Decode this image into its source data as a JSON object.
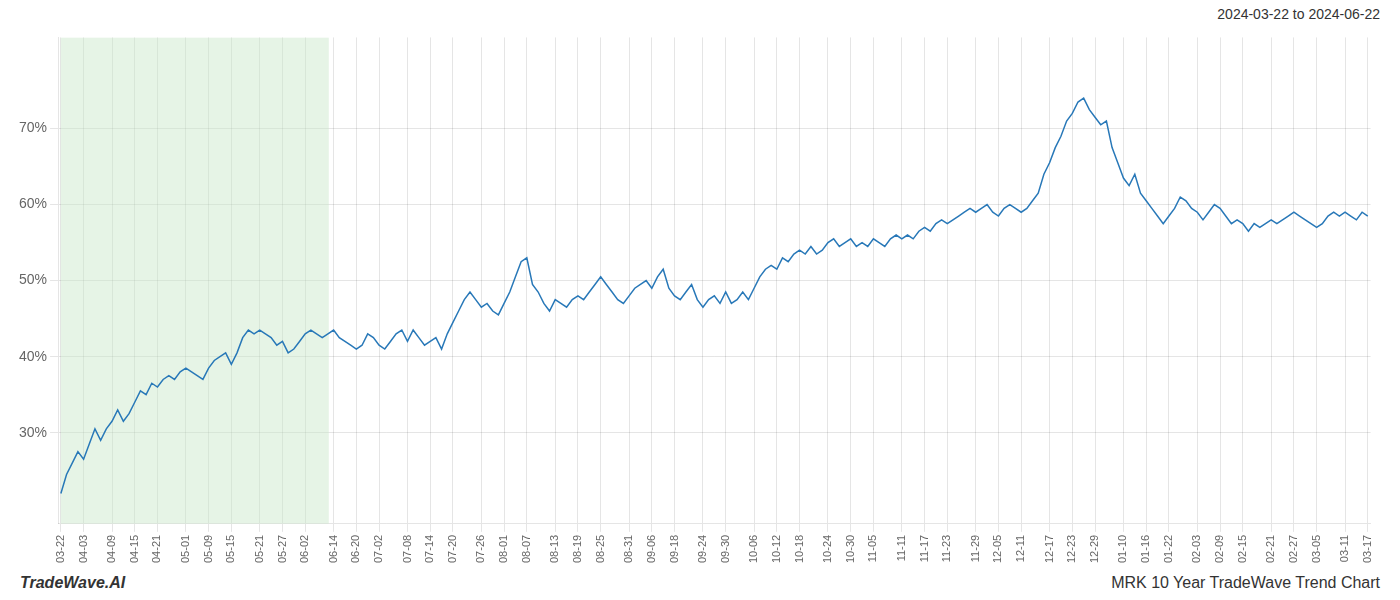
{
  "chart_data": {
    "type": "line",
    "annotations": [
      "2024-03-22 to 2024-06-22",
      "TradeWave.AI",
      "MRK 10 Year TradeWave Trend Chart"
    ],
    "categories": [
      "03-22",
      null,
      null,
      null,
      "04-03",
      null,
      null,
      null,
      null,
      "04-09",
      null,
      null,
      null,
      "04-15",
      null,
      null,
      null,
      "04-21",
      null,
      null,
      null,
      null,
      "05-01",
      null,
      null,
      null,
      "05-09",
      null,
      null,
      null,
      "05-15",
      null,
      null,
      null,
      null,
      "05-21",
      null,
      null,
      null,
      "05-27",
      null,
      null,
      null,
      "06-02",
      null,
      null,
      null,
      null,
      "06-14",
      null,
      null,
      null,
      "06-20",
      null,
      null,
      null,
      "07-02",
      null,
      null,
      null,
      null,
      "07-08",
      null,
      null,
      null,
      "07-14",
      null,
      null,
      null,
      "07-20",
      null,
      null,
      null,
      null,
      "07-26",
      null,
      null,
      null,
      "08-01",
      null,
      null,
      null,
      "08-07",
      null,
      null,
      null,
      null,
      "08-13",
      null,
      null,
      null,
      "08-19",
      null,
      null,
      null,
      "08-25",
      null,
      null,
      null,
      null,
      "08-31",
      null,
      null,
      null,
      "09-06",
      null,
      null,
      null,
      "09-18",
      null,
      null,
      null,
      null,
      "09-24",
      null,
      null,
      null,
      "09-30",
      null,
      null,
      null,
      null,
      "10-06",
      null,
      null,
      null,
      "10-12",
      null,
      null,
      null,
      "10-18",
      null,
      null,
      null,
      null,
      "10-24",
      null,
      null,
      null,
      "10-30",
      null,
      null,
      null,
      "11-05",
      null,
      null,
      null,
      null,
      "11-11",
      null,
      null,
      null,
      "11-17",
      null,
      null,
      null,
      "11-23",
      null,
      null,
      null,
      null,
      "11-29",
      null,
      null,
      null,
      "12-05",
      null,
      null,
      null,
      "12-11",
      null,
      null,
      null,
      null,
      "12-17",
      null,
      null,
      null,
      "12-23",
      null,
      null,
      null,
      "12-29",
      null,
      null,
      null,
      null,
      "01-10",
      null,
      null,
      null,
      "01-16",
      null,
      null,
      null,
      "01-22",
      null,
      null,
      null,
      null,
      "02-03",
      null,
      null,
      null,
      "02-09",
      null,
      null,
      null,
      "02-15",
      null,
      null,
      null,
      null,
      "02-21",
      null,
      null,
      null,
      "02-27",
      null,
      null,
      null,
      "03-05",
      null,
      null,
      null,
      null,
      "03-11",
      null,
      null,
      null,
      "03-17"
    ],
    "values": [
      22.0,
      24.5,
      26.0,
      27.5,
      26.5,
      28.5,
      30.5,
      29.0,
      30.5,
      31.5,
      33.0,
      31.5,
      32.5,
      34.0,
      35.5,
      35.0,
      36.5,
      36.0,
      37.0,
      37.5,
      37.0,
      38.0,
      38.5,
      38.0,
      37.5,
      37.0,
      38.5,
      39.5,
      40.0,
      40.5,
      39.0,
      40.5,
      42.5,
      43.5,
      43.0,
      43.5,
      43.0,
      42.5,
      41.5,
      42.0,
      40.5,
      41.0,
      42.0,
      43.0,
      43.5,
      43.0,
      42.5,
      43.0,
      43.5,
      42.5,
      42.0,
      41.5,
      41.0,
      41.5,
      43.0,
      42.5,
      41.5,
      41.0,
      42.0,
      43.0,
      43.5,
      42.0,
      43.5,
      42.5,
      41.5,
      42.0,
      42.5,
      41.0,
      43.0,
      44.5,
      46.0,
      47.5,
      48.5,
      47.5,
      46.5,
      47.0,
      46.0,
      45.5,
      47.0,
      48.5,
      50.5,
      52.5,
      53.0,
      49.5,
      48.5,
      47.0,
      46.0,
      47.5,
      47.0,
      46.5,
      47.5,
      48.0,
      47.5,
      48.5,
      49.5,
      50.5,
      49.5,
      48.5,
      47.5,
      47.0,
      48.0,
      49.0,
      49.5,
      50.0,
      49.0,
      50.5,
      51.5,
      49.0,
      48.0,
      47.5,
      48.5,
      49.5,
      47.5,
      46.5,
      47.5,
      48.0,
      47.0,
      48.5,
      47.0,
      47.5,
      48.5,
      47.5,
      49.0,
      50.5,
      51.5,
      52.0,
      51.5,
      53.0,
      52.5,
      53.5,
      54.0,
      53.5,
      54.5,
      53.5,
      54.0,
      55.0,
      55.5,
      54.5,
      55.0,
      55.5,
      54.5,
      55.0,
      54.5,
      55.5,
      55.0,
      54.5,
      55.5,
      56.0,
      55.5,
      56.0,
      55.5,
      56.5,
      57.0,
      56.5,
      57.5,
      58.0,
      57.5,
      58.0,
      58.5,
      59.0,
      59.5,
      59.0,
      59.5,
      60.0,
      59.0,
      58.5,
      59.5,
      60.0,
      59.5,
      59.0,
      59.5,
      60.5,
      61.5,
      64.0,
      65.5,
      67.5,
      69.0,
      71.0,
      72.0,
      73.5,
      74.0,
      72.5,
      71.5,
      70.5,
      71.0,
      67.5,
      65.5,
      63.5,
      62.5,
      64.0,
      61.5,
      60.5,
      59.5,
      58.5,
      57.5,
      58.5,
      59.5,
      61.0,
      60.5,
      59.5,
      59.0,
      58.0,
      59.0,
      60.0,
      59.5,
      58.5,
      57.5,
      58.0,
      57.5,
      56.5,
      57.5,
      57.0,
      57.5,
      58.0,
      57.5,
      58.0,
      58.5,
      59.0,
      58.5,
      58.0,
      57.5,
      57.0,
      57.5,
      58.5,
      59.0,
      58.5,
      59.0,
      58.5,
      58.0,
      59.0,
      58.5
    ],
    "color": "#2878b8",
    "span": {
      "from": 0,
      "to": 47.15,
      "color": "#c8e6c8"
    },
    "ylim": [
      18,
      82
    ],
    "yticks": [
      {
        "value": 30,
        "label": "30%"
      },
      {
        "value": 40,
        "label": "40%"
      },
      {
        "value": 50,
        "label": "50%"
      },
      {
        "value": 60,
        "label": "60%"
      },
      {
        "value": 70,
        "label": "70%"
      }
    ],
    "grid": true
  }
}
